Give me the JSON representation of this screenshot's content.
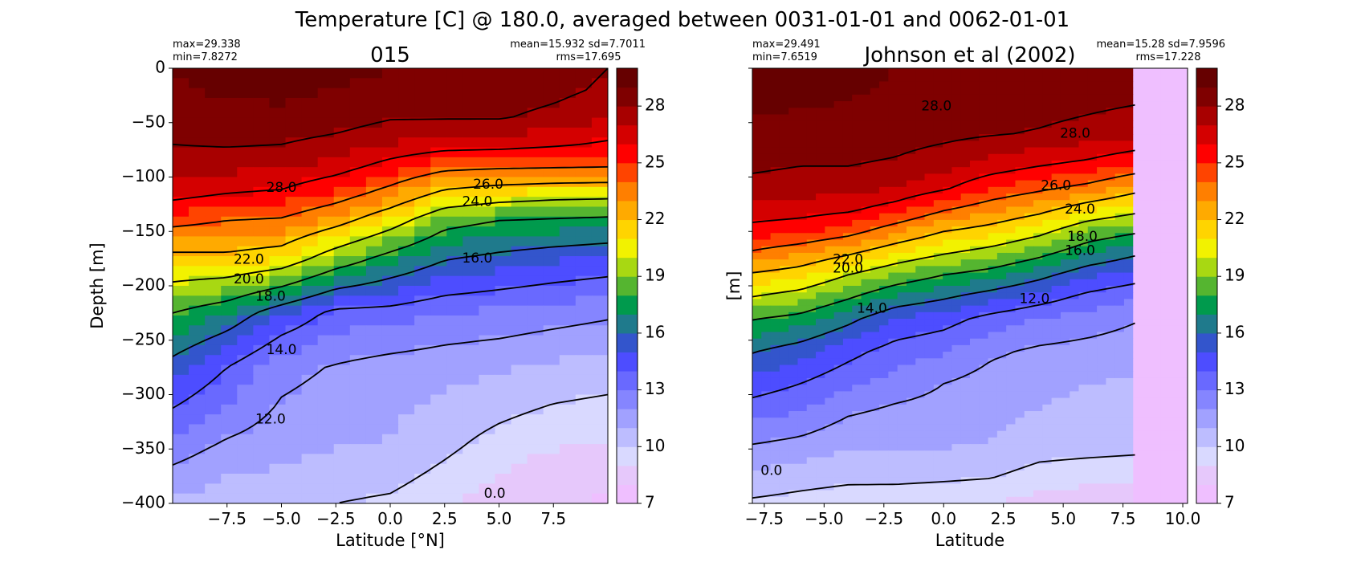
{
  "figure": {
    "suptitle": "Temperature [C] @ 180.0, averaged between 0031-01-01 and 0062-01-01"
  },
  "colorbar": {
    "colors": [
      "#efbfff",
      "#e6c8fb",
      "#d9d9ff",
      "#bdbdff",
      "#a1a1ff",
      "#8585ff",
      "#6969ff",
      "#4d4dff",
      "#3355cc",
      "#1f7a8c",
      "#009a4d",
      "#55b530",
      "#a8d812",
      "#f2f200",
      "#ffd400",
      "#ffaa00",
      "#ff7f00",
      "#ff4400",
      "#ff0000",
      "#d40000",
      "#a80000",
      "#7f0000",
      "#660000"
    ],
    "vmin": 7.0,
    "vmax": 30.0,
    "tick_labels": [
      "7",
      "10",
      "13",
      "16",
      "19",
      "22",
      "25",
      "28"
    ]
  },
  "chart_data": [
    {
      "type": "heatmap",
      "title": "015",
      "xlabel": "Latitude [°N]",
      "ylabel": "Depth [m]",
      "xlim": [
        -10.0,
        10.0
      ],
      "ylim": [
        -400,
        0
      ],
      "xtick_labels": [
        "−7.5",
        "−5.0",
        "−2.5",
        "0.0",
        "2.5",
        "5.0",
        "7.5"
      ],
      "xticks": [
        -7.5,
        -5.0,
        -2.5,
        0.0,
        2.5,
        5.0,
        7.5
      ],
      "ytick_labels": [
        "0",
        "−50",
        "−100",
        "−150",
        "−200",
        "−250",
        "−300",
        "−350",
        "−400"
      ],
      "yticks": [
        0,
        -50,
        -100,
        -150,
        -200,
        -250,
        -300,
        -350,
        -400
      ],
      "stats_left": [
        "max=29.338",
        "min=7.8272"
      ],
      "stats_right": [
        "mean=15.932 sd=7.7011",
        "rms=17.695"
      ],
      "max": 29.338,
      "min": 7.8272,
      "mean": 15.932,
      "sd": 7.7011,
      "rms": 17.695,
      "depth_levels": [
        0,
        -20,
        -45,
        -70,
        -90,
        -115,
        -140,
        -175,
        -225,
        -275,
        -350,
        -400
      ],
      "lat_nodes": [
        -10,
        -7.5,
        -5,
        -2.5,
        0,
        2.5,
        5,
        7.5,
        10
      ],
      "field": [
        [
          29.0,
          29.3,
          29.3,
          29.2,
          29.0,
          28.9,
          28.8,
          28.5,
          28.0
        ],
        [
          28.9,
          29.1,
          29.2,
          29.0,
          28.8,
          28.7,
          28.6,
          28.3,
          27.8
        ],
        [
          28.6,
          28.8,
          28.8,
          28.6,
          28.1,
          28.1,
          28.1,
          27.7,
          27.2
        ],
        [
          28.0,
          28.1,
          28.0,
          27.6,
          27.0,
          26.6,
          26.5,
          26.2,
          25.8
        ],
        [
          27.5,
          27.3,
          27.2,
          26.6,
          25.5,
          24.5,
          24.3,
          24.2,
          24.1
        ],
        [
          26.5,
          26.0,
          25.8,
          24.8,
          23.4,
          21.6,
          21.0,
          20.7,
          20.6
        ],
        [
          24.5,
          24.0,
          23.8,
          22.6,
          20.8,
          18.6,
          18.0,
          17.8,
          17.6
        ],
        [
          21.5,
          21.6,
          21.1,
          19.0,
          17.4,
          16.1,
          15.6,
          15.2,
          14.9
        ],
        [
          18.0,
          17.0,
          15.1,
          13.6,
          13.5,
          13.0,
          12.8,
          12.5,
          12.2
        ],
        [
          15.5,
          14.0,
          12.4,
          11.9,
          11.5,
          11.3,
          11.1,
          10.8,
          10.6
        ],
        [
          12.5,
          11.7,
          11.3,
          11.0,
          10.9,
          10.2,
          9.5,
          9.0,
          8.8
        ],
        [
          10.8,
          10.4,
          10.2,
          10.0,
          9.8,
          9.2,
          8.4,
          8.0,
          7.9
        ]
      ],
      "contour_labels": [
        {
          "text": "28.0",
          "lat": -5.0,
          "depth": -110
        },
        {
          "text": "26.0",
          "lat": 4.5,
          "depth": -107
        },
        {
          "text": "24.0",
          "lat": 4.0,
          "depth": -123
        },
        {
          "text": "22.0",
          "lat": -6.5,
          "depth": -176
        },
        {
          "text": "20.0",
          "lat": -6.5,
          "depth": -194
        },
        {
          "text": "18.0",
          "lat": -5.5,
          "depth": -210
        },
        {
          "text": "16.0",
          "lat": 4.0,
          "depth": -175
        },
        {
          "text": "14.0",
          "lat": -5.0,
          "depth": -259
        },
        {
          "text": "12.0",
          "lat": -5.5,
          "depth": -323
        },
        {
          "text": "0.0",
          "lat": 4.8,
          "depth": -391
        }
      ]
    },
    {
      "type": "heatmap",
      "title": "Johnson et al (2002)",
      "xlabel": "Latitude",
      "ylabel": "[m]",
      "xlim": [
        -8.0,
        10.2
      ],
      "ylim": [
        -400,
        0
      ],
      "xtick_labels": [
        "−7.5",
        "−5.0",
        "−2.5",
        "0.0",
        "2.5",
        "5.0",
        "7.5",
        "10.0"
      ],
      "xticks": [
        -7.5,
        -5.0,
        -2.5,
        0.0,
        2.5,
        5.0,
        7.5,
        10.0
      ],
      "ytick_labels": [],
      "yticks": [
        0,
        -50,
        -100,
        -150,
        -200,
        -250,
        -300,
        -350,
        -400
      ],
      "stats_left": [
        "max=29.491",
        "min=7.6519"
      ],
      "stats_right": [
        "mean=15.28 sd=7.9596",
        "rms=17.228"
      ],
      "max": 29.491,
      "min": 7.6519,
      "mean": 15.28,
      "sd": 7.9596,
      "rms": 17.228,
      "data_lat_max": 8.0,
      "depth_levels": [
        0,
        -30,
        -60,
        -90,
        -110,
        -130,
        -150,
        -170,
        -190,
        -210,
        -230,
        -260,
        -290,
        -320,
        -350,
        -380,
        -400
      ],
      "lat_nodes": [
        -8,
        -6,
        -4,
        -2,
        0,
        2,
        4,
        6,
        8
      ],
      "field": [
        [
          29.4,
          29.4,
          29.3,
          29.0,
          28.9,
          28.8,
          28.7,
          28.5,
          28.3
        ],
        [
          29.2,
          29.1,
          29.0,
          28.8,
          28.6,
          28.6,
          28.5,
          28.3,
          28.1
        ],
        [
          28.8,
          28.7,
          28.7,
          28.5,
          28.3,
          28.1,
          27.9,
          27.6,
          27.3
        ],
        [
          28.2,
          28.0,
          28.0,
          27.8,
          27.3,
          26.6,
          26.0,
          25.6,
          24.8
        ],
        [
          27.6,
          27.4,
          27.4,
          27.0,
          26.2,
          25.0,
          24.3,
          23.6,
          22.5
        ],
        [
          26.7,
          26.5,
          26.2,
          25.4,
          24.1,
          23.2,
          22.4,
          21.2,
          20.4
        ],
        [
          25.5,
          25.2,
          24.5,
          23.2,
          22.0,
          21.4,
          20.4,
          18.9,
          18.2
        ],
        [
          23.8,
          23.1,
          22.2,
          21.0,
          20.1,
          19.4,
          18.4,
          17.1,
          16.2
        ],
        [
          21.8,
          21.3,
          20.0,
          18.9,
          18.0,
          17.4,
          16.4,
          15.2,
          14.6
        ],
        [
          20.0,
          19.4,
          18.2,
          16.9,
          16.2,
          15.4,
          14.6,
          13.7,
          13.1
        ],
        [
          18.1,
          17.6,
          16.4,
          15.0,
          14.5,
          13.6,
          13.0,
          12.6,
          12.1
        ],
        [
          16.1,
          15.4,
          14.4,
          13.5,
          13.1,
          12.2,
          11.8,
          11.6,
          11.4
        ],
        [
          14.6,
          14.0,
          13.2,
          12.6,
          12.0,
          11.5,
          11.3,
          11.0,
          10.9
        ],
        [
          13.2,
          12.8,
          12.0,
          11.6,
          11.5,
          11.2,
          10.9,
          10.7,
          10.6
        ],
        [
          11.8,
          11.5,
          11.0,
          11.0,
          11.0,
          10.9,
          10.4,
          10.3,
          10.2
        ],
        [
          10.6,
          10.3,
          10.1,
          10.1,
          10.0,
          9.9,
          9.4,
          9.2,
          9.1
        ],
        [
          9.8,
          9.6,
          9.4,
          9.3,
          9.2,
          9.0,
          8.6,
          8.3,
          8.2
        ]
      ],
      "contour_labels": [
        {
          "text": "28.0",
          "lat": -0.3,
          "depth": -35
        },
        {
          "text": "28.0",
          "lat": 5.5,
          "depth": -60
        },
        {
          "text": "26.0",
          "lat": 4.7,
          "depth": -108
        },
        {
          "text": "24.0",
          "lat": 5.7,
          "depth": -130
        },
        {
          "text": "22.0",
          "lat": -4.0,
          "depth": -176
        },
        {
          "text": "20.0",
          "lat": -4.0,
          "depth": -184
        },
        {
          "text": "18.0",
          "lat": 5.8,
          "depth": -155
        },
        {
          "text": "16.0",
          "lat": 5.7,
          "depth": -168
        },
        {
          "text": "14.0",
          "lat": -3.0,
          "depth": -221
        },
        {
          "text": "12.0",
          "lat": 3.8,
          "depth": -212
        },
        {
          "text": "0.0",
          "lat": -7.2,
          "depth": -370
        }
      ]
    }
  ]
}
